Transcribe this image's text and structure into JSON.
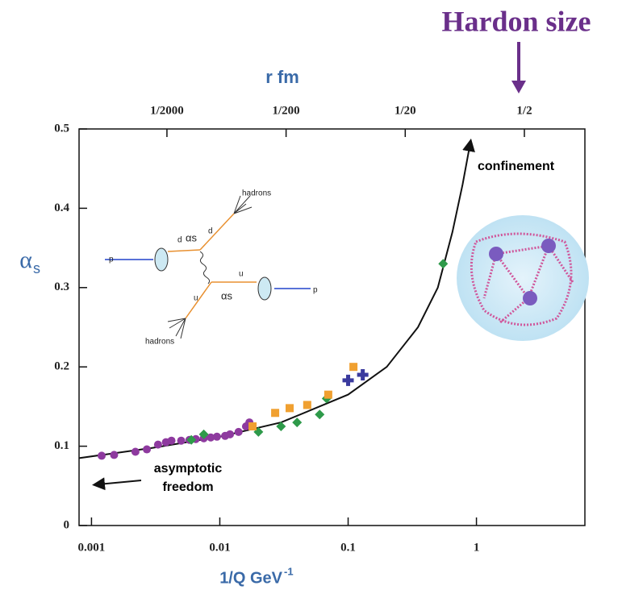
{
  "chart_data": {
    "type": "scatter",
    "title": "Hardon size",
    "x2label": "r fm",
    "xlabel": "1/Q GeV",
    "xlabel_sup": "-1",
    "ylabel": "α",
    "ylabel_sub": "s",
    "xscale": "log",
    "xlim": [
      0.0008,
      7
    ],
    "xticks": [
      0.001,
      0.01,
      0.1,
      1
    ],
    "x2lim": [
      9.15e-05,
      1.61
    ],
    "x2ticks": [
      {
        "value": 0.0005,
        "label": "1/2000"
      },
      {
        "value": 0.005,
        "label": "1/200"
      },
      {
        "value": 0.05,
        "label": "1/20"
      },
      {
        "value": 0.5,
        "label": "1/2"
      }
    ],
    "ylim": [
      0,
      0.5
    ],
    "yticks": [
      0,
      0.1,
      0.2,
      0.3,
      0.4,
      0.5
    ],
    "annotations": [
      "confinement",
      "asymptotic",
      "freedom"
    ],
    "diagram_labels": [
      "hadrons",
      "d",
      "d",
      "αs",
      "p",
      "u",
      "u",
      "αs",
      "p",
      "hadrons"
    ],
    "series": [
      {
        "name": "purple",
        "color": "#8e3a9f",
        "marker": "circle",
        "x": [
          0.0012,
          0.0015,
          0.0022,
          0.0027,
          0.0033,
          0.0038,
          0.0042,
          0.005,
          0.0058,
          0.0065,
          0.0075,
          0.0085,
          0.0095,
          0.011,
          0.012,
          0.014,
          0.016,
          0.017
        ],
        "values": [
          0.088,
          0.089,
          0.093,
          0.096,
          0.102,
          0.105,
          0.107,
          0.107,
          0.108,
          0.109,
          0.11,
          0.111,
          0.112,
          0.113,
          0.115,
          0.118,
          0.125,
          0.13
        ]
      },
      {
        "name": "green",
        "color": "#2e9a4a",
        "marker": "diamond",
        "x": [
          0.006,
          0.0075,
          0.02,
          0.03,
          0.04,
          0.06,
          0.068,
          0.55
        ],
        "values": [
          0.108,
          0.115,
          0.118,
          0.125,
          0.13,
          0.14,
          0.16,
          0.33
        ]
      },
      {
        "name": "orange",
        "color": "#f0a030",
        "marker": "square",
        "x": [
          0.018,
          0.027,
          0.035,
          0.048,
          0.07,
          0.11
        ],
        "values": [
          0.125,
          0.142,
          0.148,
          0.152,
          0.165,
          0.2
        ]
      },
      {
        "name": "blue",
        "color": "#3a3a9e",
        "marker": "cross",
        "x": [
          0.1,
          0.13
        ],
        "values": [
          0.183,
          0.19
        ]
      }
    ],
    "curve": {
      "color": "#111",
      "x": [
        0.0008,
        0.003,
        0.01,
        0.03,
        0.1,
        0.2,
        0.35,
        0.5,
        0.65,
        0.78,
        0.89
      ],
      "values": [
        0.085,
        0.098,
        0.112,
        0.13,
        0.165,
        0.2,
        0.25,
        0.3,
        0.37,
        0.43,
        0.48
      ]
    }
  }
}
